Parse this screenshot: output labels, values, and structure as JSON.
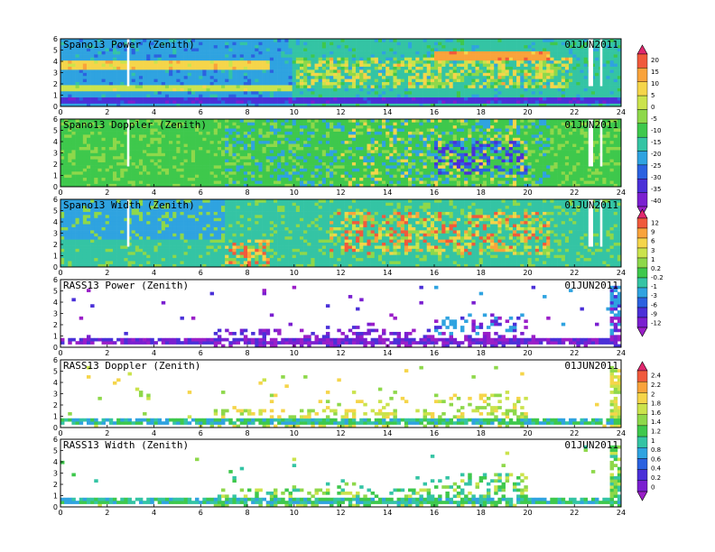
{
  "chart_data": [
    {
      "type": "heatmap",
      "title": "Spano13 Power (Zenith)",
      "date": "01JUN2011",
      "xticks": [
        "0",
        "2",
        "4",
        "6",
        "8",
        "10",
        "12",
        "14",
        "16",
        "18",
        "20",
        "22",
        "24"
      ],
      "yticks": [
        "0",
        "1",
        "2",
        "3",
        "4",
        "5",
        "6"
      ],
      "xlim": [
        0,
        24
      ],
      "ylim": [
        0,
        6
      ],
      "features": [
        {
          "x": [
            0,
            24
          ],
          "y": [
            0.4,
            0.9
          ],
          "value": -30,
          "label": "low blue band"
        },
        {
          "x": [
            0,
            10
          ],
          "y": [
            1.3,
            2.0
          ],
          "value": 5,
          "label": "lower bright layer"
        },
        {
          "x": [
            0,
            9
          ],
          "y": [
            3.4,
            4.2
          ],
          "value": 5,
          "label": "upper bright layer"
        },
        {
          "x": [
            10,
            22
          ],
          "y": [
            1.5,
            4.2
          ],
          "value": 0,
          "label": "daytime boundary layer"
        }
      ]
    },
    {
      "type": "heatmap",
      "title": "Spano13 Doppler (Zenith)",
      "date": "01JUN2011",
      "xticks": [
        "0",
        "2",
        "4",
        "6",
        "8",
        "10",
        "12",
        "14",
        "16",
        "18",
        "20",
        "22",
        "24"
      ],
      "yticks": [
        "0",
        "1",
        "2",
        "3",
        "4",
        "5",
        "6"
      ],
      "xlim": [
        0,
        24
      ],
      "ylim": [
        0,
        6
      ],
      "features": [
        {
          "x": [
            16,
            20
          ],
          "y": [
            1,
            4
          ],
          "value": -30,
          "label": "downward motion"
        }
      ]
    },
    {
      "type": "heatmap",
      "title": "Spano13 Width (Zenith)",
      "date": "01JUN2011",
      "xticks": [
        "0",
        "2",
        "4",
        "6",
        "8",
        "10",
        "12",
        "14",
        "16",
        "18",
        "20",
        "22",
        "24"
      ],
      "yticks": [
        "0",
        "1",
        "2",
        "3",
        "4",
        "5",
        "6"
      ],
      "xlim": [
        0,
        24
      ],
      "ylim": [
        0,
        6
      ],
      "features": [
        {
          "x": [
            7,
            9
          ],
          "y": [
            0.5,
            2.5
          ],
          "value": 9,
          "label": "turbulent layer"
        },
        {
          "x": [
            11.5,
            21
          ],
          "y": [
            1,
            5
          ],
          "value": 6,
          "label": "daytime turbulence"
        }
      ]
    },
    {
      "type": "heatmap",
      "title": "RASS13 Power (Zenith)",
      "date": "01JUN2011",
      "xticks": [
        "0",
        "2",
        "4",
        "6",
        "8",
        "10",
        "12",
        "14",
        "16",
        "18",
        "20",
        "22",
        "24"
      ],
      "yticks": [
        "0",
        "1",
        "2",
        "3",
        "4",
        "5",
        "6"
      ],
      "xlim": [
        0,
        24
      ],
      "ylim": [
        0,
        6
      ]
    },
    {
      "type": "heatmap",
      "title": "RASS13 Doppler (Zenith)",
      "date": "01JUN2011",
      "xticks": [
        "0",
        "2",
        "4",
        "6",
        "8",
        "10",
        "12",
        "14",
        "16",
        "18",
        "20",
        "22",
        "24"
      ],
      "yticks": [
        "0",
        "1",
        "2",
        "3",
        "4",
        "5",
        "6"
      ],
      "xlim": [
        0,
        24
      ],
      "ylim": [
        0,
        6
      ]
    },
    {
      "type": "heatmap",
      "title": "RASS13 Width (Zenith)",
      "date": "01JUN2011",
      "xticks": [
        "0",
        "2",
        "4",
        "6",
        "8",
        "10",
        "12",
        "14",
        "16",
        "18",
        "20",
        "22",
        "24"
      ],
      "yticks": [
        "0",
        "1",
        "2",
        "3",
        "4",
        "5",
        "6"
      ],
      "xlim": [
        0,
        24
      ],
      "ylim": [
        0,
        6
      ]
    }
  ],
  "colorbars": [
    {
      "labels": [
        "20",
        "15",
        "10",
        "5",
        "0",
        "-5",
        "-10",
        "-15",
        "-20",
        "-25",
        "-30",
        "-35",
        "-40"
      ],
      "colors": [
        "#e0286e",
        "#f05a3c",
        "#f9a33b",
        "#f5d54a",
        "#cbe34c",
        "#8ed84a",
        "#3ec84c",
        "#34c4a4",
        "#2fa3e0",
        "#2b62e0",
        "#4a30d8",
        "#7a1fd0",
        "#9a1ec8"
      ]
    },
    {
      "labels": [
        "12",
        "9",
        "6",
        "3",
        "1",
        "0.2",
        "-0.2",
        "-1",
        "-3",
        "-6",
        "-9",
        "-12"
      ],
      "colors": [
        "#e0286e",
        "#f05a3c",
        "#f9a33b",
        "#f5d54a",
        "#cbe34c",
        "#8ed84a",
        "#3ec84c",
        "#34c4a4",
        "#2fa3e0",
        "#2b62e0",
        "#4a30d8",
        "#7a1fd0",
        "#9a1ec8"
      ]
    },
    {
      "labels": [
        "2.4",
        "2.2",
        "2",
        "1.8",
        "1.6",
        "1.4",
        "1.2",
        "1",
        "0.8",
        "0.6",
        "0.4",
        "0.2",
        "0"
      ],
      "colors": [
        "#e0286e",
        "#f05a3c",
        "#f9a33b",
        "#f5d54a",
        "#cbe34c",
        "#8ed84a",
        "#3ec84c",
        "#34c4a4",
        "#2fa3e0",
        "#2b62e0",
        "#4a30d8",
        "#7a1fd0",
        "#9a1ec8"
      ]
    }
  ]
}
